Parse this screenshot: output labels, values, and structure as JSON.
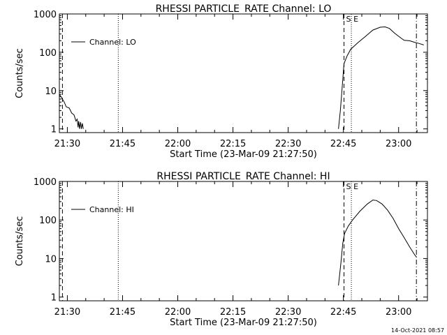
{
  "footer": "14-Oct-2021 08:57",
  "chart_data": [
    {
      "type": "line",
      "title": "RHESSI PARTICLE_RATE Channel: LO",
      "xlabel": "Start Time (23-Mar-09 21:27:50)",
      "ylabel": "Counts/sec",
      "yscale": "log",
      "ylim": [
        0.8,
        1000
      ],
      "xlim": [
        "21:27:50",
        "23:07:50"
      ],
      "x_ticks": [
        "21:30",
        "21:45",
        "22:00",
        "22:15",
        "22:30",
        "22:45",
        "23:00"
      ],
      "y_ticks": [
        "1",
        "10",
        "100",
        "1000"
      ],
      "legend": {
        "position": "top-left",
        "entries": [
          "Channel: LO"
        ]
      },
      "markers": [
        {
          "time": "21:28:40",
          "style": "dashed"
        },
        {
          "time": "21:43:50",
          "style": "dotted"
        },
        {
          "time": "22:45:10",
          "style": "dashed",
          "label": "S"
        },
        {
          "time": "22:47:10",
          "style": "dotted",
          "label": "E"
        },
        {
          "time": "23:04:50",
          "style": "dashdot"
        }
      ],
      "series": [
        {
          "name": "Channel: LO",
          "segments": [
            [
              [
                "21:27:50",
                8
              ],
              [
                "21:28:40",
                6
              ],
              [
                "21:29:10",
                5
              ],
              [
                "21:29:40",
                3.8
              ],
              [
                "21:30:30",
                3.5
              ],
              [
                "21:31:10",
                2.6
              ],
              [
                "21:31:50",
                2.3
              ],
              [
                "21:32:20",
                1.6
              ],
              [
                "21:32:40",
                1.8
              ],
              [
                "21:32:55",
                1.1
              ],
              [
                "21:33:05",
                1.6
              ],
              [
                "21:33:20",
                1.0
              ],
              [
                "21:33:35",
                1.5
              ],
              [
                "21:33:50",
                1.0
              ],
              [
                "21:34:05",
                1.4
              ],
              [
                "21:34:20",
                1.0
              ]
            ],
            [
              [
                "22:43:40",
                1
              ],
              [
                "22:44:10",
                3
              ],
              [
                "22:44:40",
                12
              ],
              [
                "22:45:10",
                50
              ],
              [
                "22:46:00",
                80
              ],
              [
                "22:47:00",
                120
              ],
              [
                "22:49:00",
                180
              ],
              [
                "22:51:00",
                260
              ],
              [
                "22:53:00",
                380
              ],
              [
                "22:55:00",
                450
              ],
              [
                "22:56:20",
                460
              ],
              [
                "22:57:30",
                420
              ],
              [
                "22:59:00",
                310
              ],
              [
                "23:00:30",
                240
              ],
              [
                "23:01:30",
                205
              ],
              [
                "23:03:00",
                200
              ],
              [
                "23:04:30",
                180
              ],
              [
                "23:05:30",
                170
              ],
              [
                "23:06:50",
                155
              ]
            ]
          ]
        }
      ]
    },
    {
      "type": "line",
      "title": "RHESSI PARTICLE_RATE Channel: HI",
      "xlabel": "Start Time (23-Mar-09 21:27:50)",
      "ylabel": "Counts/sec",
      "yscale": "log",
      "ylim": [
        0.8,
        1000
      ],
      "xlim": [
        "21:27:50",
        "23:07:50"
      ],
      "x_ticks": [
        "21:30",
        "21:45",
        "22:00",
        "22:15",
        "22:30",
        "22:45",
        "23:00"
      ],
      "y_ticks": [
        "1",
        "10",
        "100",
        "1000"
      ],
      "legend": {
        "position": "top-left",
        "entries": [
          "Channel: HI"
        ]
      },
      "markers": [
        {
          "time": "21:28:40",
          "style": "dashed"
        },
        {
          "time": "21:43:50",
          "style": "dotted"
        },
        {
          "time": "22:45:10",
          "style": "dashed",
          "label": "S"
        },
        {
          "time": "22:47:10",
          "style": "dotted",
          "label": "E"
        },
        {
          "time": "23:04:50",
          "style": "dashdot"
        }
      ],
      "series": [
        {
          "name": "Channel: HI",
          "segments": [
            [
              [
                "22:43:40",
                2
              ],
              [
                "22:44:20",
                8
              ],
              [
                "22:44:50",
                25
              ],
              [
                "22:45:20",
                45
              ],
              [
                "22:46:20",
                70
              ],
              [
                "22:47:30",
                100
              ],
              [
                "22:49:30",
                170
              ],
              [
                "22:51:30",
                260
              ],
              [
                "22:53:00",
                330
              ],
              [
                "22:54:00",
                320
              ],
              [
                "22:55:30",
                260
              ],
              [
                "22:57:00",
                180
              ],
              [
                "22:58:30",
                110
              ],
              [
                "23:00:00",
                60
              ],
              [
                "23:01:30",
                35
              ],
              [
                "23:03:00",
                20
              ],
              [
                "23:04:30",
                12
              ],
              [
                "23:04:50",
                11
              ]
            ]
          ]
        }
      ]
    }
  ]
}
